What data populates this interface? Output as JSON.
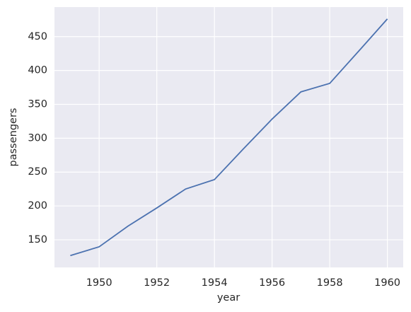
{
  "chart_data": {
    "type": "line",
    "x_label": "year",
    "y_label": "passengers",
    "x": [
      1949,
      1950,
      1951,
      1952,
      1953,
      1954,
      1955,
      1956,
      1957,
      1958,
      1959,
      1960
    ],
    "series": [
      {
        "color": "#4c72b0",
        "values": [
          126.67,
          139.67,
          170.17,
          197.0,
          225.0,
          238.92,
          284.0,
          328.25,
          368.42,
          381.0,
          428.33,
          476.17
        ]
      }
    ],
    "xlim": [
      1948.45,
      1960.55
    ],
    "xticks": [
      1950,
      1952,
      1954,
      1956,
      1958,
      1960
    ],
    "ylim": [
      109.19,
      493.64
    ],
    "yticks": [
      150,
      200,
      250,
      300,
      350,
      400,
      450
    ],
    "grid": true
  }
}
